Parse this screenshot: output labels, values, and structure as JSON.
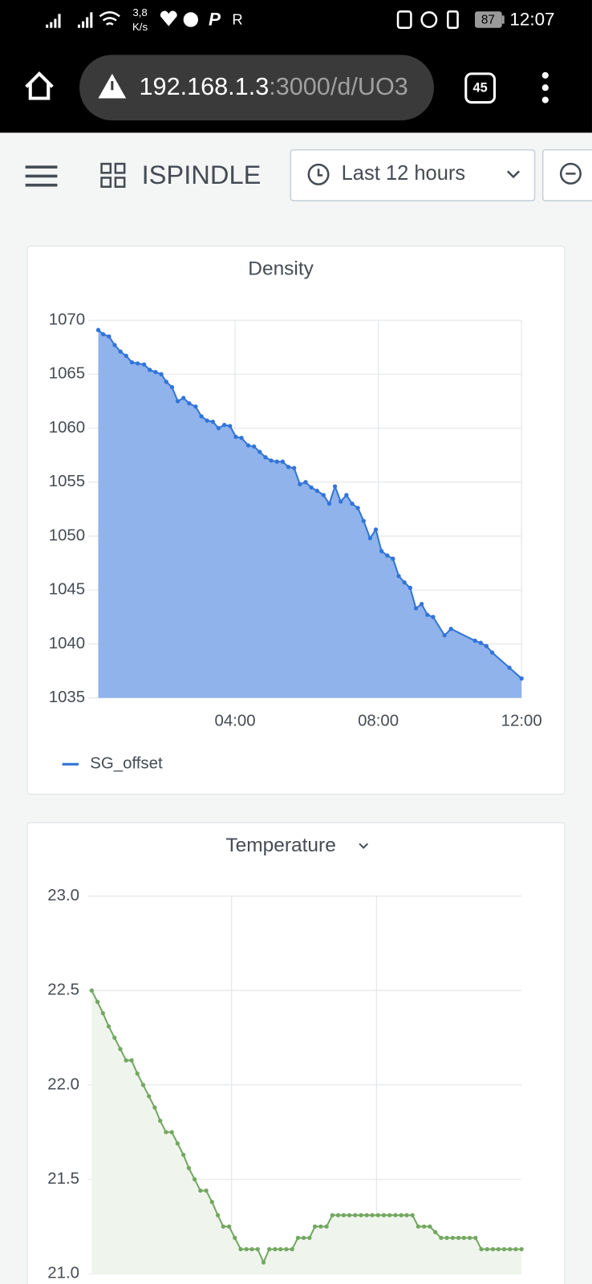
{
  "status_bar": {
    "speed": "3,8",
    "speed_unit": "K/s",
    "battery": "87",
    "time": "12:07"
  },
  "browser": {
    "url_host": "192.168.1.3",
    "url_path": ":3000/d/UO3",
    "tab_count": "45"
  },
  "header": {
    "title": "ISPINDLE",
    "time_range": "Last 12 hours"
  },
  "chart_data": [
    {
      "type": "area",
      "title": "Density",
      "legend": "bottom",
      "grid": true,
      "xlim": [
        0.18,
        12
      ],
      "xticks": [
        {
          "value": 4,
          "label": "04:00"
        },
        {
          "value": 8,
          "label": "08:00"
        },
        {
          "value": 12,
          "label": "12:00"
        }
      ],
      "ylim": [
        1035,
        1070
      ],
      "yticks": [
        1035,
        1040,
        1045,
        1050,
        1055,
        1060,
        1065,
        1070
      ],
      "x": [
        0.18,
        0.32,
        0.48,
        0.64,
        0.8,
        0.96,
        1.12,
        1.28,
        1.46,
        1.62,
        1.78,
        1.94,
        2.08,
        2.24,
        2.4,
        2.56,
        2.72,
        2.9,
        3.06,
        3.22,
        3.38,
        3.54,
        3.7,
        3.86,
        4.02,
        4.18,
        4.37,
        4.53,
        4.69,
        4.85,
        5.01,
        5.17,
        5.33,
        5.49,
        5.65,
        5.81,
        5.97,
        6.13,
        6.29,
        6.47,
        6.63,
        6.79,
        6.95,
        7.11,
        7.27,
        7.43,
        7.59,
        7.77,
        7.93,
        8.09,
        8.25,
        8.41,
        8.57,
        8.73,
        8.89,
        9.05,
        9.21,
        9.37,
        9.53,
        9.85,
        10.03,
        10.7,
        10.86,
        11.02,
        11.18,
        11.66,
        12.0
      ],
      "series": [
        {
          "name": "SG_offset",
          "color": "#3274d9",
          "fill": "#8fb3ea",
          "values": [
            1069.1,
            1068.7,
            1068.5,
            1067.7,
            1067.1,
            1066.7,
            1066.1,
            1066.0,
            1065.9,
            1065.4,
            1065.2,
            1065.0,
            1064.3,
            1063.8,
            1062.5,
            1062.8,
            1062.3,
            1062.0,
            1061.1,
            1060.7,
            1060.6,
            1060.0,
            1060.3,
            1060.2,
            1059.2,
            1059.1,
            1058.4,
            1058.3,
            1057.8,
            1057.3,
            1057.0,
            1056.9,
            1056.9,
            1056.4,
            1056.3,
            1054.8,
            1055.0,
            1054.5,
            1054.2,
            1053.8,
            1053.0,
            1054.6,
            1053.2,
            1053.8,
            1053.0,
            1052.6,
            1051.4,
            1049.8,
            1050.6,
            1048.6,
            1048.2,
            1047.9,
            1046.3,
            1045.7,
            1045.2,
            1043.3,
            1043.7,
            1042.7,
            1042.5,
            1040.8,
            1041.4,
            1040.3,
            1040.1,
            1039.8,
            1039.2,
            1037.8,
            1036.8
          ]
        }
      ]
    },
    {
      "type": "area",
      "title": "Temperature",
      "grid": true,
      "xlim": [
        0.05,
        12
      ],
      "xticks": [
        4,
        8
      ],
      "ylim": [
        21,
        23
      ],
      "yticks": [
        {
          "value": 21,
          "label": "21.0"
        },
        21.5,
        {
          "value": 22,
          "label": "22.0"
        },
        22.5,
        {
          "value": 23,
          "label": "23.0"
        }
      ],
      "x": [
        0.14,
        0.3,
        0.45,
        0.61,
        0.77,
        0.93,
        1.09,
        1.24,
        1.4,
        1.56,
        1.72,
        1.88,
        2.03,
        2.19,
        2.35,
        2.51,
        2.67,
        2.82,
        2.98,
        3.14,
        3.3,
        3.46,
        3.62,
        3.77,
        3.93,
        4.09,
        4.25,
        4.41,
        4.56,
        4.72,
        4.88,
        5.04,
        5.2,
        5.35,
        5.51,
        5.67,
        5.83,
        5.99,
        6.15,
        6.3,
        6.46,
        6.62,
        6.78,
        6.94,
        7.09,
        7.25,
        7.41,
        7.57,
        7.73,
        7.88,
        8.04,
        8.2,
        8.36,
        8.52,
        8.68,
        8.83,
        8.99,
        9.15,
        9.31,
        9.47,
        9.62,
        9.78,
        9.94,
        10.1,
        10.26,
        10.41,
        10.57,
        10.73,
        10.89,
        11.05,
        11.21,
        11.36,
        11.52,
        11.68,
        11.84,
        12.0
      ],
      "series": [
        {
          "color": "#73a860",
          "fill": "#eff5ec",
          "values": [
            22.5,
            22.44,
            22.38,
            22.31,
            22.25,
            22.19,
            22.13,
            22.13,
            22.06,
            22.0,
            21.94,
            21.88,
            21.81,
            21.75,
            21.75,
            21.69,
            21.63,
            21.56,
            21.5,
            21.44,
            21.44,
            21.38,
            21.31,
            21.25,
            21.25,
            21.19,
            21.13,
            21.13,
            21.13,
            21.13,
            21.06,
            21.13,
            21.13,
            21.13,
            21.13,
            21.13,
            21.19,
            21.19,
            21.19,
            21.25,
            21.25,
            21.25,
            21.31,
            21.31,
            21.31,
            21.31,
            21.31,
            21.31,
            21.31,
            21.31,
            21.31,
            21.31,
            21.31,
            21.31,
            21.31,
            21.31,
            21.31,
            21.25,
            21.25,
            21.25,
            21.22,
            21.19,
            21.19,
            21.19,
            21.19,
            21.19,
            21.19,
            21.19,
            21.13,
            21.13,
            21.13,
            21.13,
            21.13,
            21.13,
            21.13,
            21.13
          ]
        }
      ]
    }
  ]
}
